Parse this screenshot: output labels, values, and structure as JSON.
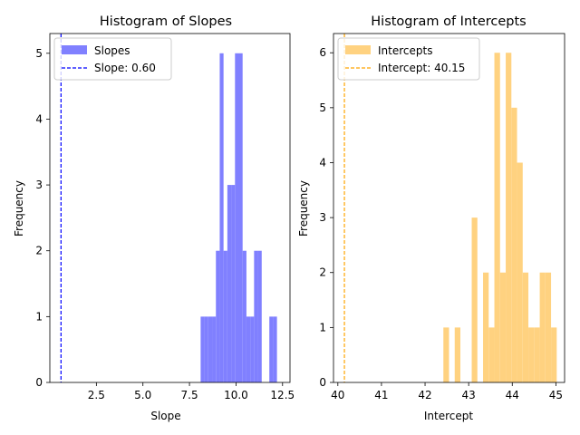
{
  "chart_data": [
    {
      "type": "bar",
      "title": "Histogram of Slopes",
      "xlabel": "Slope",
      "ylabel": "Frequency",
      "xlim": [
        0.0,
        12.9
      ],
      "ylim": [
        0,
        5.3
      ],
      "xticks": [
        2.5,
        5.0,
        7.5,
        10.0,
        12.5
      ],
      "xtick_labels": [
        "2.5",
        "5.0",
        "7.5",
        "10.0",
        "12.5"
      ],
      "yticks": [
        0,
        1,
        2,
        3,
        4,
        5
      ],
      "ytick_labels": [
        "0",
        "1",
        "2",
        "3",
        "4",
        "5"
      ],
      "bin_width": 0.205,
      "bins": [
        {
          "start": 8.1,
          "count": 1
        },
        {
          "start": 8.305,
          "count": 1
        },
        {
          "start": 8.51,
          "count": 1
        },
        {
          "start": 8.715,
          "count": 1
        },
        {
          "start": 8.92,
          "count": 2
        },
        {
          "start": 9.125,
          "count": 5
        },
        {
          "start": 9.33,
          "count": 2
        },
        {
          "start": 9.535,
          "count": 3
        },
        {
          "start": 9.74,
          "count": 3
        },
        {
          "start": 9.945,
          "count": 5
        },
        {
          "start": 10.15,
          "count": 5
        },
        {
          "start": 10.355,
          "count": 2
        },
        {
          "start": 10.56,
          "count": 1
        },
        {
          "start": 10.765,
          "count": 1
        },
        {
          "start": 10.97,
          "count": 2
        },
        {
          "start": 11.175,
          "count": 2
        },
        {
          "start": 11.38,
          "count": 0
        },
        {
          "start": 11.585,
          "count": 0
        },
        {
          "start": 11.79,
          "count": 1
        },
        {
          "start": 11.995,
          "count": 1
        }
      ],
      "vline": {
        "x": 0.6,
        "label": "Slope: 0.60",
        "color": "#0000ff"
      },
      "series_label": "Slopes",
      "bar_color": "#8080ff",
      "legend_position": "upper-left",
      "grid": false
    },
    {
      "type": "bar",
      "title": "Histogram of Intercepts",
      "xlabel": "Intercept",
      "ylabel": "Frequency",
      "xlim": [
        39.9,
        45.2
      ],
      "ylim": [
        0,
        6.35
      ],
      "xticks": [
        40,
        41,
        42,
        43,
        44,
        45
      ],
      "xtick_labels": [
        "40",
        "41",
        "42",
        "43",
        "44",
        "45"
      ],
      "yticks": [
        0,
        1,
        2,
        3,
        4,
        5,
        6
      ],
      "ytick_labels": [
        "0",
        "1",
        "2",
        "3",
        "4",
        "5",
        "6"
      ],
      "bin_width": 0.1295,
      "bins": [
        {
          "start": 42.42,
          "count": 1
        },
        {
          "start": 42.55,
          "count": 0
        },
        {
          "start": 42.68,
          "count": 1
        },
        {
          "start": 42.81,
          "count": 0
        },
        {
          "start": 42.94,
          "count": 0
        },
        {
          "start": 43.07,
          "count": 3
        },
        {
          "start": 43.2,
          "count": 0
        },
        {
          "start": 43.33,
          "count": 2
        },
        {
          "start": 43.46,
          "count": 1
        },
        {
          "start": 43.59,
          "count": 6
        },
        {
          "start": 43.72,
          "count": 2
        },
        {
          "start": 43.85,
          "count": 6
        },
        {
          "start": 43.98,
          "count": 5
        },
        {
          "start": 44.11,
          "count": 4
        },
        {
          "start": 44.24,
          "count": 2
        },
        {
          "start": 44.37,
          "count": 1
        },
        {
          "start": 44.5,
          "count": 1
        },
        {
          "start": 44.63,
          "count": 2
        },
        {
          "start": 44.76,
          "count": 2
        },
        {
          "start": 44.89,
          "count": 1
        }
      ],
      "vline": {
        "x": 40.15,
        "label": "Intercept: 40.15",
        "color": "#ffa500"
      },
      "series_label": "Intercepts",
      "bar_color": "#ffd280",
      "legend_position": "upper-left",
      "grid": false
    }
  ]
}
